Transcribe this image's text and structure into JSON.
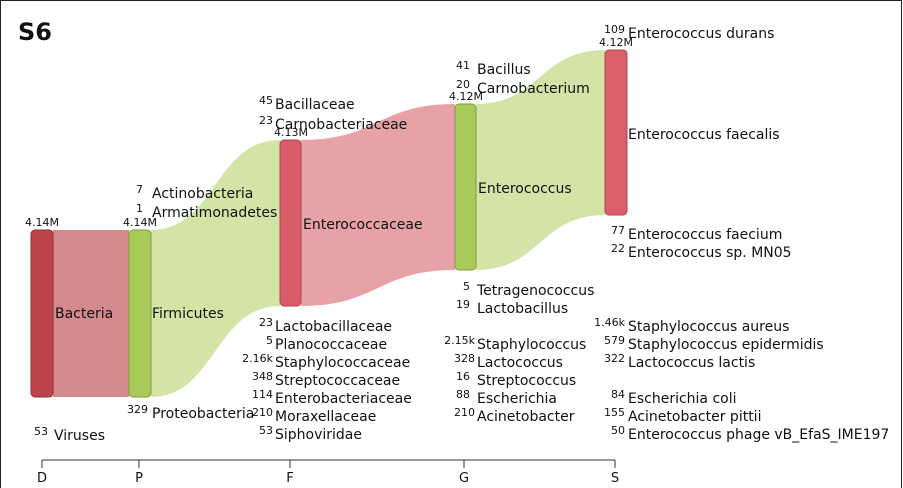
{
  "title": "S6",
  "axis": [
    "D",
    "P",
    "F",
    "G",
    "S"
  ],
  "main_nodes": [
    {
      "count": "4.14M",
      "name": "Bacteria"
    },
    {
      "count": "4.14M",
      "name": "Firmicutes"
    },
    {
      "count": "4.13M",
      "name": "Enterococcaceae"
    },
    {
      "count": "4.12M",
      "name": "Enterococcus"
    },
    {
      "count": "4.12M",
      "name": "Enterococcus faecalis"
    }
  ],
  "minor_nodes": [
    {
      "count": "53",
      "name": "Viruses"
    },
    {
      "count": "7",
      "name": "Actinobacteria"
    },
    {
      "count": "1",
      "name": "Armatimonadetes"
    },
    {
      "count": "329",
      "name": "Proteobacteria"
    },
    {
      "count": "45",
      "name": "Bacillaceae"
    },
    {
      "count": "23",
      "name": "Carnobacteriaceae"
    },
    {
      "count": "23",
      "name": "Lactobacillaceae"
    },
    {
      "count": "5",
      "name": "Planococcaceae"
    },
    {
      "count": "2.16k",
      "name": "Staphylococcaceae"
    },
    {
      "count": "348",
      "name": "Streptococcaceae"
    },
    {
      "count": "114",
      "name": "Enterobacteriaceae"
    },
    {
      "count": "210",
      "name": "Moraxellaceae"
    },
    {
      "count": "53",
      "name": "Siphoviridae"
    },
    {
      "count": "41",
      "name": "Bacillus"
    },
    {
      "count": "20",
      "name": "Carnobacterium"
    },
    {
      "count": "5",
      "name": "Tetragenococcus"
    },
    {
      "count": "19",
      "name": "Lactobacillus"
    },
    {
      "count": "2.15k",
      "name": "Staphylococcus"
    },
    {
      "count": "328",
      "name": "Lactococcus"
    },
    {
      "count": "16",
      "name": "Streptococcus"
    },
    {
      "count": "88",
      "name": "Escherichia"
    },
    {
      "count": "210",
      "name": "Acinetobacter"
    },
    {
      "count": "109",
      "name": "Enterococcus durans"
    },
    {
      "count": "77",
      "name": "Enterococcus faecium"
    },
    {
      "count": "22",
      "name": "Enterococcus sp. MN05"
    },
    {
      "count": "1.46k",
      "name": "Staphylococcus aureus"
    },
    {
      "count": "579",
      "name": "Staphylococcus epidermidis"
    },
    {
      "count": "322",
      "name": "Lactococcus lactis"
    },
    {
      "count": "84",
      "name": "Escherichia coli"
    },
    {
      "count": "155",
      "name": "Acinetobacter pittii"
    },
    {
      "count": "50",
      "name": "Enterococcus phage vB_EfaS_IME197"
    }
  ]
}
